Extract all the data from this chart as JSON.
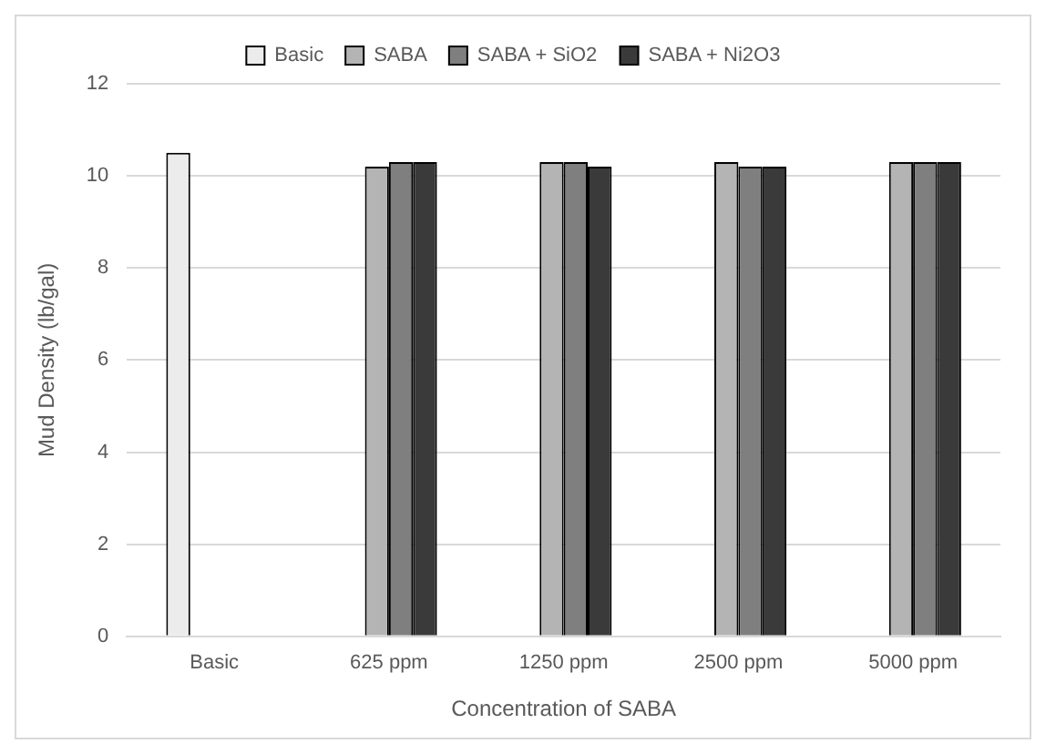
{
  "chart_data": {
    "type": "bar",
    "xlabel": "Concentration of SABA",
    "ylabel": "Mud Density (lb/gal)",
    "categories": [
      "Basic",
      "625 ppm",
      "1250 ppm",
      "2500 ppm",
      "5000 ppm"
    ],
    "series": [
      {
        "name": "Basic",
        "color": "#ececec",
        "values": [
          10.5,
          null,
          null,
          null,
          null
        ]
      },
      {
        "name": "SABA",
        "color": "#b4b4b4",
        "values": [
          null,
          10.2,
          10.3,
          10.3,
          10.3
        ]
      },
      {
        "name": "SABA + SiO2",
        "color": "#7f7f7f",
        "values": [
          null,
          10.3,
          10.3,
          10.2,
          10.3
        ]
      },
      {
        "name": "SABA + Ni2O3",
        "color": "#3a3a3a",
        "values": [
          null,
          10.3,
          10.2,
          10.2,
          10.3
        ]
      }
    ],
    "ylim": [
      0,
      12
    ],
    "yticks": [
      0,
      2,
      4,
      6,
      8,
      10,
      12
    ],
    "grid": "y",
    "legend": "top"
  }
}
